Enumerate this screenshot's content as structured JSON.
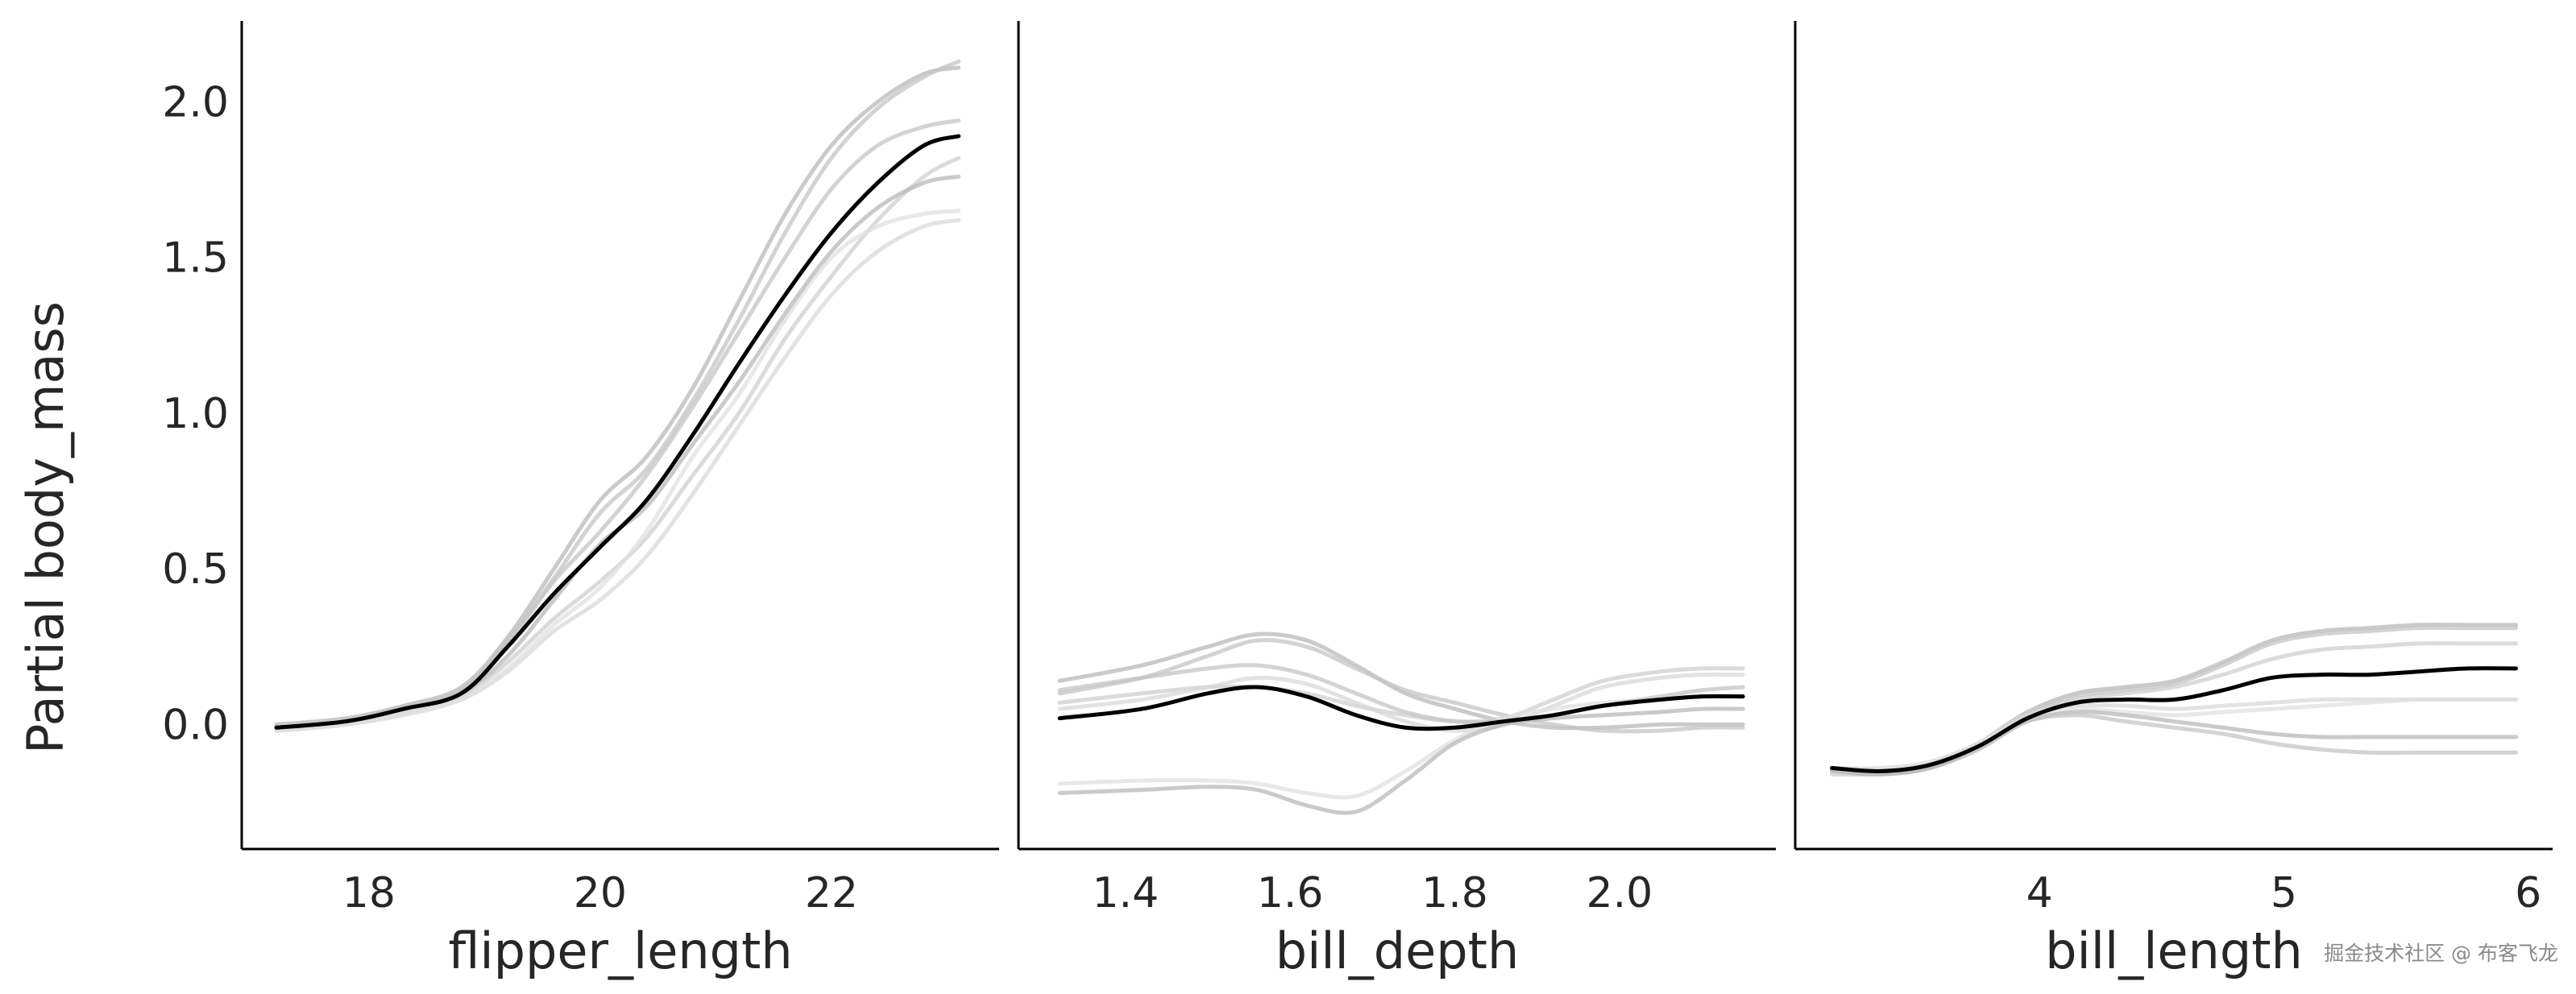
{
  "chart_data": {
    "type": "line",
    "ylabel": "Partial body_mass",
    "y_ticks": [
      "0.0",
      "0.5",
      "1.0",
      "1.5",
      "2.0"
    ],
    "y_tick_values": [
      0.0,
      0.5,
      1.0,
      1.5,
      2.0
    ],
    "ylim": [
      -0.4,
      2.26
    ],
    "grid": false,
    "colors": {
      "mean": "#000000",
      "samples": [
        "#b8b8b8",
        "#c4c4c4",
        "#cfcfcf",
        "#d8d8d8",
        "#e0e0e0"
      ]
    },
    "panels": [
      {
        "xlabel": "flipper_length",
        "xlim": [
          16.9,
          23.45
        ],
        "x_ticks": [
          "18",
          "20",
          "22"
        ],
        "x_tick_values": [
          18,
          20,
          22
        ],
        "mean": {
          "x": [
            17.2,
            17.8,
            18.3,
            18.8,
            19.2,
            19.6,
            20.0,
            20.4,
            20.8,
            21.2,
            21.6,
            22.0,
            22.4,
            22.8,
            23.1
          ],
          "y": [
            -0.01,
            0.01,
            0.05,
            0.1,
            0.25,
            0.42,
            0.57,
            0.72,
            0.93,
            1.16,
            1.38,
            1.58,
            1.74,
            1.86,
            1.89
          ]
        },
        "samples": [
          {
            "x": [
              17.2,
              17.8,
              18.3,
              18.8,
              19.2,
              19.6,
              20.0,
              20.4,
              20.8,
              21.2,
              21.6,
              22.0,
              22.4,
              22.8,
              23.1
            ],
            "y": [
              0.0,
              0.02,
              0.06,
              0.12,
              0.28,
              0.5,
              0.72,
              0.86,
              1.08,
              1.36,
              1.64,
              1.86,
              2.0,
              2.09,
              2.11
            ]
          },
          {
            "x": [
              17.2,
              17.8,
              18.3,
              18.8,
              19.2,
              19.6,
              20.0,
              20.4,
              20.8,
              21.2,
              21.6,
              22.0,
              22.4,
              22.8,
              23.1
            ],
            "y": [
              -0.01,
              0.01,
              0.06,
              0.11,
              0.27,
              0.47,
              0.68,
              0.82,
              1.04,
              1.3,
              1.58,
              1.82,
              1.98,
              2.08,
              2.13
            ]
          },
          {
            "x": [
              17.2,
              17.8,
              18.3,
              18.8,
              19.2,
              19.6,
              20.0,
              20.4,
              20.8,
              21.2,
              21.6,
              22.0,
              22.4,
              22.8,
              23.1
            ],
            "y": [
              -0.02,
              0.0,
              0.04,
              0.09,
              0.2,
              0.34,
              0.46,
              0.6,
              0.8,
              1.0,
              1.24,
              1.44,
              1.62,
              1.76,
              1.82
            ]
          },
          {
            "x": [
              17.2,
              17.8,
              18.3,
              18.8,
              19.2,
              19.6,
              20.0,
              20.4,
              20.8,
              21.2,
              21.6,
              22.0,
              22.4,
              22.8,
              23.1
            ],
            "y": [
              -0.02,
              0.0,
              0.03,
              0.08,
              0.17,
              0.3,
              0.4,
              0.54,
              0.74,
              0.96,
              1.18,
              1.38,
              1.52,
              1.6,
              1.62
            ]
          },
          {
            "x": [
              17.2,
              17.8,
              18.3,
              18.8,
              19.2,
              19.6,
              20.0,
              20.4,
              20.8,
              21.2,
              21.6,
              22.0,
              22.4,
              22.8,
              23.1
            ],
            "y": [
              -0.02,
              0.0,
              0.04,
              0.08,
              0.18,
              0.32,
              0.44,
              0.62,
              0.86,
              1.06,
              1.3,
              1.5,
              1.6,
              1.64,
              1.65
            ]
          },
          {
            "x": [
              17.2,
              17.8,
              18.3,
              18.8,
              19.2,
              19.6,
              20.0,
              20.4,
              20.8,
              21.2,
              21.6,
              22.0,
              22.4,
              22.8,
              23.1
            ],
            "y": [
              -0.01,
              0.01,
              0.05,
              0.1,
              0.22,
              0.4,
              0.58,
              0.7,
              0.9,
              1.1,
              1.32,
              1.52,
              1.66,
              1.74,
              1.76
            ]
          },
          {
            "x": [
              17.2,
              17.8,
              18.3,
              18.8,
              19.2,
              19.6,
              20.0,
              20.4,
              20.8,
              21.2,
              21.6,
              22.0,
              22.4,
              22.8,
              23.1
            ],
            "y": [
              -0.01,
              0.01,
              0.05,
              0.11,
              0.26,
              0.46,
              0.62,
              0.8,
              1.02,
              1.26,
              1.5,
              1.72,
              1.86,
              1.92,
              1.94
            ]
          }
        ]
      },
      {
        "xlabel": "bill_depth",
        "xlim": [
          1.27,
          2.19
        ],
        "x_ticks": [
          "1.4",
          "1.6",
          "1.8",
          "2.0"
        ],
        "x_tick_values": [
          1.4,
          1.6,
          1.8,
          2.0
        ],
        "mean": {
          "x": [
            1.32,
            1.42,
            1.5,
            1.56,
            1.62,
            1.68,
            1.74,
            1.8,
            1.86,
            1.92,
            1.98,
            2.05,
            2.1,
            2.15
          ],
          "y": [
            0.02,
            0.05,
            0.1,
            0.12,
            0.09,
            0.03,
            -0.01,
            -0.01,
            0.01,
            0.03,
            0.06,
            0.08,
            0.09,
            0.09
          ]
        },
        "samples": [
          {
            "x": [
              1.32,
              1.42,
              1.5,
              1.56,
              1.62,
              1.68,
              1.74,
              1.8,
              1.86,
              1.92,
              1.98,
              2.05,
              2.1,
              2.15
            ],
            "y": [
              0.14,
              0.19,
              0.25,
              0.29,
              0.27,
              0.19,
              0.1,
              0.05,
              0.01,
              -0.01,
              -0.01,
              0.0,
              0.0,
              0.0
            ]
          },
          {
            "x": [
              1.32,
              1.42,
              1.5,
              1.56,
              1.62,
              1.68,
              1.74,
              1.8,
              1.86,
              1.92,
              1.98,
              2.05,
              2.1,
              2.15
            ],
            "y": [
              0.1,
              0.15,
              0.22,
              0.27,
              0.25,
              0.18,
              0.11,
              0.07,
              0.03,
              0.0,
              -0.02,
              -0.02,
              -0.01,
              -0.01
            ]
          },
          {
            "x": [
              1.32,
              1.42,
              1.5,
              1.56,
              1.62,
              1.68,
              1.74,
              1.8,
              1.86,
              1.92,
              1.98,
              2.05,
              2.1,
              2.15
            ],
            "y": [
              0.07,
              0.1,
              0.12,
              0.12,
              0.1,
              0.06,
              0.03,
              0.01,
              0.02,
              0.08,
              0.14,
              0.17,
              0.18,
              0.18
            ]
          },
          {
            "x": [
              1.32,
              1.42,
              1.5,
              1.56,
              1.62,
              1.68,
              1.74,
              1.8,
              1.86,
              1.92,
              1.98,
              2.05,
              2.1,
              2.15
            ],
            "y": [
              0.05,
              0.08,
              0.12,
              0.15,
              0.13,
              0.07,
              0.01,
              -0.02,
              0.0,
              0.06,
              0.12,
              0.15,
              0.16,
              0.16
            ]
          },
          {
            "x": [
              1.32,
              1.42,
              1.5,
              1.56,
              1.62,
              1.68,
              1.74,
              1.8,
              1.86,
              1.92,
              1.98,
              2.05,
              2.1,
              2.15
            ],
            "y": [
              -0.19,
              -0.18,
              -0.18,
              -0.19,
              -0.22,
              -0.23,
              -0.15,
              -0.05,
              0.02,
              0.05,
              0.07,
              0.08,
              0.09,
              0.09
            ]
          },
          {
            "x": [
              1.32,
              1.42,
              1.5,
              1.56,
              1.62,
              1.68,
              1.74,
              1.8,
              1.86,
              1.92,
              1.98,
              2.05,
              2.1,
              2.15
            ],
            "y": [
              -0.22,
              -0.21,
              -0.2,
              -0.21,
              -0.26,
              -0.28,
              -0.18,
              -0.06,
              0.0,
              0.02,
              0.03,
              0.04,
              0.05,
              0.05
            ]
          },
          {
            "x": [
              1.32,
              1.42,
              1.5,
              1.56,
              1.62,
              1.68,
              1.74,
              1.8,
              1.86,
              1.92,
              1.98,
              2.05,
              2.1,
              2.15
            ],
            "y": [
              0.11,
              0.15,
              0.18,
              0.19,
              0.16,
              0.1,
              0.04,
              0.01,
              0.01,
              0.03,
              0.06,
              0.09,
              0.11,
              0.12
            ]
          }
        ]
      },
      {
        "xlabel": "bill_length",
        "xlim": [
          3.0,
          6.1
        ],
        "x_ticks": [
          "4",
          "5",
          "6"
        ],
        "x_tick_values": [
          4,
          5,
          6
        ],
        "mean": {
          "x": [
            3.15,
            3.35,
            3.55,
            3.75,
            3.95,
            4.15,
            4.35,
            4.55,
            4.75,
            4.95,
            5.15,
            5.35,
            5.55,
            5.75,
            5.95
          ],
          "y": [
            -0.14,
            -0.15,
            -0.13,
            -0.07,
            0.02,
            0.07,
            0.08,
            0.08,
            0.11,
            0.15,
            0.16,
            0.16,
            0.17,
            0.18,
            0.18
          ]
        },
        "samples": [
          {
            "x": [
              3.15,
              3.35,
              3.55,
              3.75,
              3.95,
              4.15,
              4.35,
              4.55,
              4.75,
              4.95,
              5.15,
              5.35,
              5.55,
              5.75,
              5.95
            ],
            "y": [
              -0.14,
              -0.15,
              -0.13,
              -0.06,
              0.04,
              0.1,
              0.12,
              0.14,
              0.2,
              0.27,
              0.3,
              0.31,
              0.32,
              0.32,
              0.32
            ]
          },
          {
            "x": [
              3.15,
              3.35,
              3.55,
              3.75,
              3.95,
              4.15,
              4.35,
              4.55,
              4.75,
              4.95,
              5.15,
              5.35,
              5.55,
              5.75,
              5.95
            ],
            "y": [
              -0.15,
              -0.16,
              -0.14,
              -0.07,
              0.03,
              0.09,
              0.11,
              0.13,
              0.19,
              0.26,
              0.29,
              0.3,
              0.31,
              0.31,
              0.31
            ]
          },
          {
            "x": [
              3.15,
              3.35,
              3.55,
              3.75,
              3.95,
              4.15,
              4.35,
              4.55,
              4.75,
              4.95,
              5.15,
              5.35,
              5.55,
              5.75,
              5.95
            ],
            "y": [
              -0.16,
              -0.16,
              -0.14,
              -0.07,
              0.03,
              0.08,
              0.1,
              0.12,
              0.16,
              0.21,
              0.24,
              0.25,
              0.26,
              0.26,
              0.26
            ]
          },
          {
            "x": [
              3.15,
              3.35,
              3.55,
              3.75,
              3.95,
              4.15,
              4.35,
              4.55,
              4.75,
              4.95,
              5.15,
              5.35,
              5.55,
              5.75,
              5.95
            ],
            "y": [
              -0.14,
              -0.14,
              -0.12,
              -0.06,
              0.03,
              0.06,
              0.06,
              0.05,
              0.06,
              0.07,
              0.08,
              0.08,
              0.08,
              0.08,
              0.08
            ]
          },
          {
            "x": [
              3.15,
              3.35,
              3.55,
              3.75,
              3.95,
              4.15,
              4.35,
              4.55,
              4.75,
              4.95,
              5.15,
              5.35,
              5.55,
              5.75,
              5.95
            ],
            "y": [
              -0.15,
              -0.15,
              -0.13,
              -0.06,
              0.02,
              0.05,
              0.04,
              0.03,
              0.04,
              0.05,
              0.06,
              0.07,
              0.08,
              0.08,
              0.08
            ]
          },
          {
            "x": [
              3.15,
              3.35,
              3.55,
              3.75,
              3.95,
              4.15,
              4.35,
              4.55,
              4.75,
              4.95,
              5.15,
              5.35,
              5.55,
              5.75,
              5.95
            ],
            "y": [
              -0.15,
              -0.16,
              -0.14,
              -0.08,
              0.01,
              0.04,
              0.03,
              0.01,
              -0.01,
              -0.03,
              -0.04,
              -0.04,
              -0.04,
              -0.04,
              -0.04
            ]
          },
          {
            "x": [
              3.15,
              3.35,
              3.55,
              3.75,
              3.95,
              4.15,
              4.35,
              4.55,
              4.75,
              4.95,
              5.15,
              5.35,
              5.55,
              5.75,
              5.95
            ],
            "y": [
              -0.14,
              -0.15,
              -0.13,
              -0.07,
              0.01,
              0.03,
              0.01,
              -0.01,
              -0.03,
              -0.06,
              -0.08,
              -0.09,
              -0.09,
              -0.09,
              -0.09
            ]
          }
        ]
      }
    ]
  },
  "watermark": "掘金技术社区 @ 布客飞龙"
}
